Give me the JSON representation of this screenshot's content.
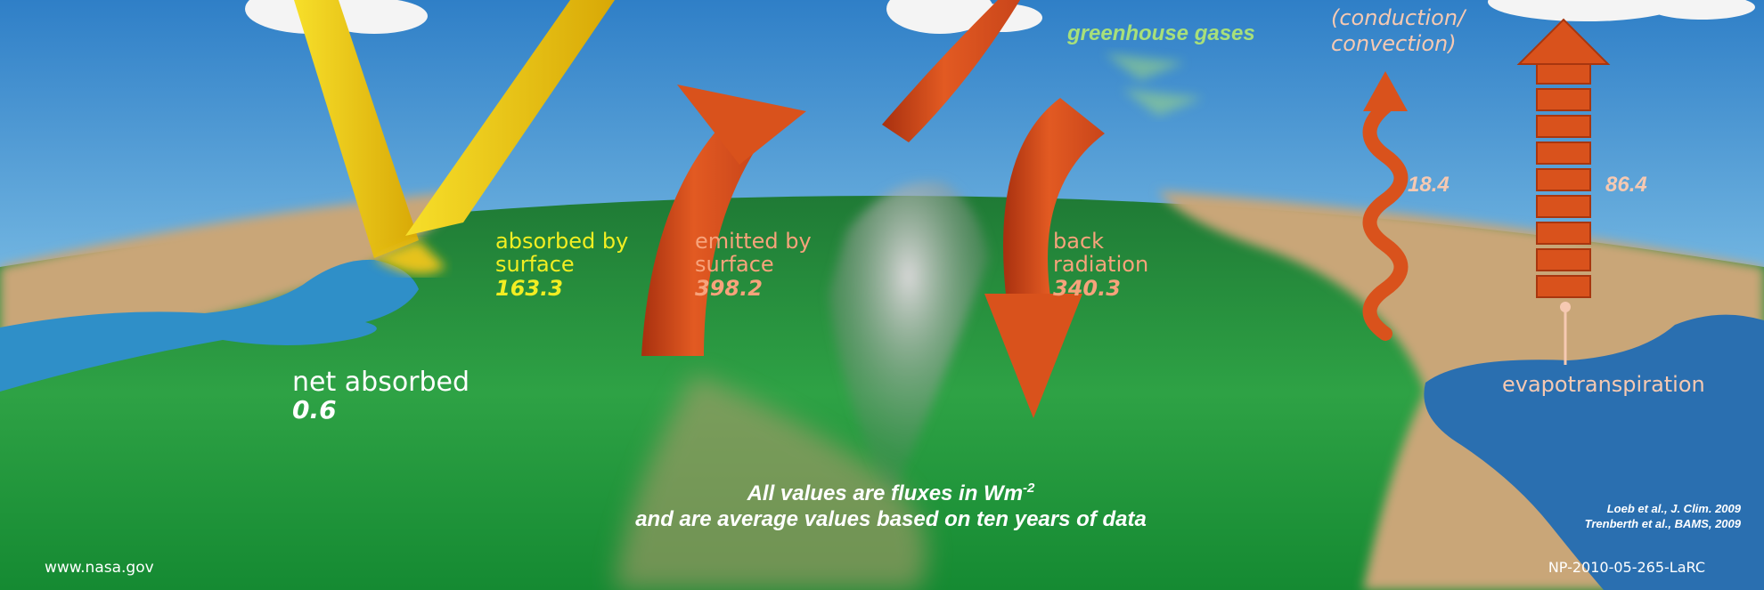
{
  "labels": {
    "greenhouse": "greenhouse gases",
    "conduction_line1": "(conduction/",
    "conduction_line2": "convection)",
    "absorbed_line1": "absorbed by",
    "absorbed_line2": "surface",
    "absorbed_value": "163.3",
    "emitted_line1": "emitted by",
    "emitted_line2": "surface",
    "emitted_value": "398.2",
    "back_line1": "back",
    "back_line2": "radiation",
    "back_value": "340.3",
    "conduction_value": "18.4",
    "evapo_value": "86.4",
    "net_label": "net absorbed",
    "net_value": "0.6",
    "evapo_label": "evapotranspiration"
  },
  "footer": {
    "note_line1": "All values are fluxes in Wm",
    "note_sup": "-2",
    "note_line2": "and are average values based on ten years of data",
    "website": "www.nasa.gov",
    "ref1": "Loeb et al., J. Clim. 2009",
    "ref2": "Trenberth et al., BAMS, 2009",
    "code": "NP-2010-05-265-LaRC"
  },
  "colors": {
    "sky_top": "#2f7fc7",
    "sky_bottom": "#cfe8f4",
    "land_green": "#2e9a3e",
    "land_tan": "#c9a678",
    "water": "#2f8fc8",
    "sunlight_yellow": "#f2c40a",
    "infrared_orange": "#d9521c"
  }
}
